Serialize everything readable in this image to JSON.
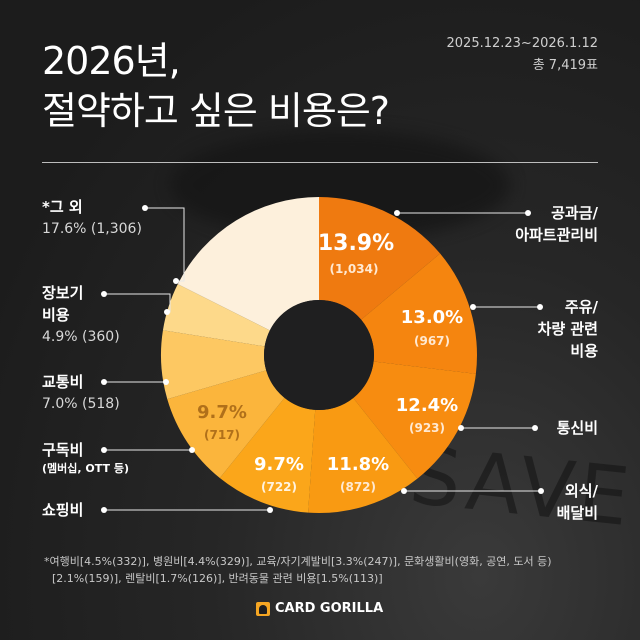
{
  "header": {
    "title_line1": "2026년,",
    "title_line2": "절약하고 싶은 비용은?",
    "date_range": "2025.12.23~2026.1.12",
    "total_votes": "총 7,419표"
  },
  "labels": {
    "others": {
      "name": "*그 외",
      "value": "17.6% (1,306)"
    },
    "groceries": {
      "name_line1": "장보기",
      "name_line2": "비용",
      "value": "4.9% (360)"
    },
    "transport": {
      "name": "교통비",
      "value": "7.0% (518)"
    },
    "subscription": {
      "name": "구독비",
      "sub": "(멤버십, OTT 등)"
    },
    "shopping": {
      "name": "쇼핑비"
    },
    "utilities": {
      "name_line1": "공과금/",
      "name_line2": "아파트관리비"
    },
    "fuel": {
      "name_line1": "주유/",
      "name_line2": "차량 관련",
      "name_line3": "비용"
    },
    "telecom": {
      "name": "통신비"
    },
    "dining": {
      "name_line1": "외식/",
      "name_line2": "배달비"
    }
  },
  "inner_labels": {
    "utilities": {
      "pct": "13.9%",
      "count": "(1,034)"
    },
    "fuel": {
      "pct": "13.0%",
      "count": "(967)"
    },
    "telecom": {
      "pct": "12.4%",
      "count": "(923)"
    },
    "dining": {
      "pct": "11.8%",
      "count": "(872)"
    },
    "shopping": {
      "pct": "9.7%",
      "count": "(722)"
    },
    "subscription": {
      "pct": "9.7%",
      "count": "(717)"
    }
  },
  "footnote": {
    "line1": "*여행비[4.5%(332)], 병원비[4.4%(329)], 교육/자기계발비[3.3%(247)], 문화생활비(영화, 공연, 도서 등)",
    "line2": "[2.1%(159)], 렌탈비[1.7%(126)], 반려동물 관련 비용[1.5%(113)]"
  },
  "brand": {
    "name": "CARD GORILLA",
    "accent": "#f5a623"
  },
  "chart_data": {
    "type": "pie",
    "subtype": "donut",
    "title": "2026년, 절약하고 싶은 비용은?",
    "total": 7419,
    "period": "2025.12.23~2026.1.12",
    "categories": [
      "공과금/아파트관리비",
      "주유/차량 관련 비용",
      "통신비",
      "외식/배달비",
      "쇼핑비",
      "구독비(멤버십, OTT 등)",
      "교통비",
      "장보기 비용",
      "그 외"
    ],
    "values": [
      13.9,
      13.0,
      12.4,
      11.8,
      9.7,
      9.7,
      7.0,
      4.9,
      17.6
    ],
    "counts": [
      1034,
      967,
      923,
      872,
      722,
      717,
      518,
      360,
      1306
    ],
    "colors": [
      "#ef7a10",
      "#f5850f",
      "#f78c10",
      "#f99a12",
      "#fba61a",
      "#fbb53c",
      "#fdc862",
      "#fdd98a",
      "#fdf0dc"
    ],
    "others_breakdown": [
      {
        "name": "여행비",
        "pct": 4.5,
        "count": 332
      },
      {
        "name": "병원비",
        "pct": 4.4,
        "count": 329
      },
      {
        "name": "교육/자기계발비",
        "pct": 3.3,
        "count": 247
      },
      {
        "name": "문화생활비(영화, 공연, 도서 등)",
        "pct": 2.1,
        "count": 159
      },
      {
        "name": "렌탈비",
        "pct": 1.7,
        "count": 126
      },
      {
        "name": "반려동물 관련 비용",
        "pct": 1.5,
        "count": 113
      }
    ],
    "start_angle": "12 o'clock",
    "direction": "clockwise",
    "legend_position": "callouts left and right"
  }
}
